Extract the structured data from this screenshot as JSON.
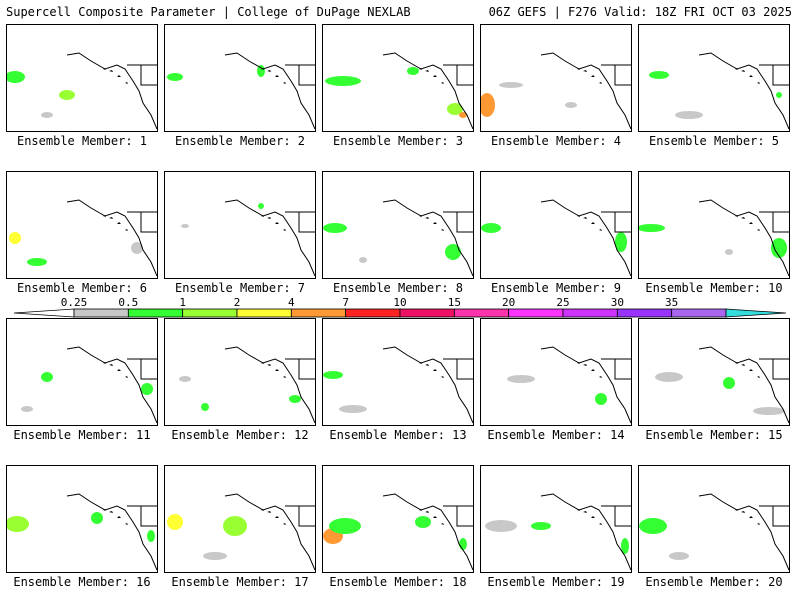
{
  "header": {
    "left_title": "Supercell Composite Parameter | College of DuPage NEXLAB",
    "right_title": "06Z GEFS | F276 Valid: 18Z FRI OCT 03 2025"
  },
  "panels": [
    {
      "label": "Ensemble Member: 1"
    },
    {
      "label": "Ensemble Member: 2"
    },
    {
      "label": "Ensemble Member: 3"
    },
    {
      "label": "Ensemble Member: 4"
    },
    {
      "label": "Ensemble Member: 5"
    },
    {
      "label": "Ensemble Member: 6"
    },
    {
      "label": "Ensemble Member: 7"
    },
    {
      "label": "Ensemble Member: 8"
    },
    {
      "label": "Ensemble Member: 9"
    },
    {
      "label": "Ensemble Member: 10"
    },
    {
      "label": "Ensemble Member: 11"
    },
    {
      "label": "Ensemble Member: 12"
    },
    {
      "label": "Ensemble Member: 13"
    },
    {
      "label": "Ensemble Member: 14"
    },
    {
      "label": "Ensemble Member: 15"
    },
    {
      "label": "Ensemble Member: 16"
    },
    {
      "label": "Ensemble Member: 17"
    },
    {
      "label": "Ensemble Member: 18"
    },
    {
      "label": "Ensemble Member: 19"
    },
    {
      "label": "Ensemble Member: 20"
    }
  ],
  "colorbar": {
    "labels": [
      "0.25",
      "0.5",
      "1",
      "2",
      "4",
      "7",
      "10",
      "15",
      "20",
      "25",
      "30",
      "35"
    ],
    "colors": [
      "#c8c8c8",
      "#33ff33",
      "#99ff33",
      "#ffff33",
      "#ff9933",
      "#ff2222",
      "#ee1166",
      "#ff33aa",
      "#ff33ff",
      "#cc33ff",
      "#9933ff",
      "#aa66ee",
      "#33dddd"
    ]
  }
}
